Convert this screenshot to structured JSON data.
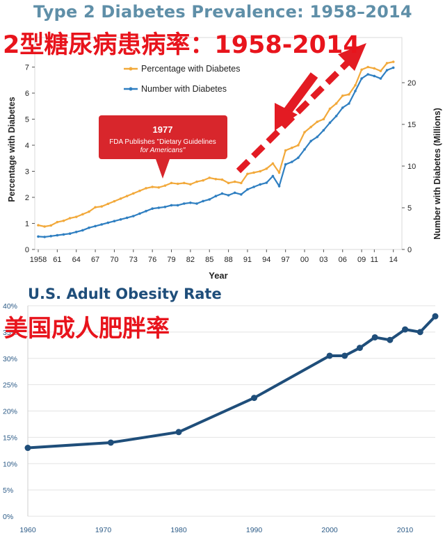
{
  "top": {
    "title": "Type 2 Diabetes Prevalence: 1958–2014",
    "title_cn": "2型糖尿病患病率：1958-2014",
    "annotation_year": "1977",
    "annotation_text_1": "FDA Publishes \"Dietary Guidelines",
    "annotation_text_2": "for Americans\"",
    "colors": {
      "percentage": "#f2a93b",
      "number": "#2f7fc1",
      "callout": "#d8262c",
      "arrow": "#e31b23"
    }
  },
  "bottom": {
    "title": "U.S. Adult Obesity Rate",
    "title_cn": "美国成人肥胖率",
    "colors": {
      "line": "#1f4e7a"
    }
  },
  "chart_data": [
    {
      "type": "line",
      "title": "Type 2 Diabetes Prevalence: 1958–2014",
      "xlabel": "Year",
      "ylabel": "Percentage with Diabetes",
      "y2label": "Number with Diabetes (Millions)",
      "x": [
        1958,
        1959,
        1960,
        1961,
        1962,
        1963,
        1964,
        1965,
        1966,
        1967,
        1968,
        1969,
        1970,
        1971,
        1972,
        1973,
        1974,
        1975,
        1976,
        1977,
        1978,
        1979,
        1980,
        1981,
        1982,
        1983,
        1984,
        1985,
        1986,
        1987,
        1988,
        1989,
        1990,
        1991,
        1992,
        1993,
        1994,
        1995,
        1996,
        1997,
        1998,
        1999,
        2000,
        2001,
        2002,
        2003,
        2004,
        2005,
        2006,
        2007,
        2008,
        2009,
        2010,
        2011,
        2012,
        2013,
        2014
      ],
      "x_tick_labels": [
        "1958",
        "61",
        "64",
        "67",
        "70",
        "73",
        "76",
        "79",
        "82",
        "85",
        "88",
        "91",
        "94",
        "97",
        "00",
        "03",
        "06",
        "09",
        "11",
        "14"
      ],
      "ylim": [
        0,
        7.2
      ],
      "y_ticks": [
        0,
        1,
        2,
        3,
        4,
        5,
        6,
        7
      ],
      "y2lim": [
        0,
        22.5
      ],
      "y2_ticks": [
        0,
        5,
        10,
        15,
        20
      ],
      "legend_position": "top-left",
      "series": [
        {
          "name": "Percentage with Diabetes",
          "axis": "left",
          "values": [
            0.93,
            0.88,
            0.92,
            1.05,
            1.1,
            1.2,
            1.25,
            1.35,
            1.45,
            1.62,
            1.65,
            1.75,
            1.85,
            1.95,
            2.05,
            2.15,
            2.25,
            2.35,
            2.4,
            2.38,
            2.45,
            2.55,
            2.52,
            2.55,
            2.5,
            2.6,
            2.65,
            2.75,
            2.7,
            2.68,
            2.55,
            2.6,
            2.55,
            2.9,
            2.95,
            3.0,
            3.1,
            3.3,
            2.95,
            3.8,
            3.9,
            4.0,
            4.5,
            4.7,
            4.9,
            5.0,
            5.4,
            5.6,
            5.9,
            5.95,
            6.3,
            6.9,
            7.0,
            6.95,
            6.85,
            7.15,
            7.2
          ]
        },
        {
          "name": "Number with Diabetes",
          "axis": "right",
          "values": [
            1.55,
            1.5,
            1.6,
            1.7,
            1.8,
            1.9,
            2.1,
            2.3,
            2.6,
            2.8,
            3.0,
            3.2,
            3.4,
            3.6,
            3.8,
            4.0,
            4.3,
            4.6,
            4.9,
            5.0,
            5.1,
            5.3,
            5.3,
            5.5,
            5.6,
            5.5,
            5.8,
            6.0,
            6.4,
            6.7,
            6.5,
            6.8,
            6.6,
            7.2,
            7.5,
            7.8,
            8.0,
            8.8,
            7.6,
            10.2,
            10.5,
            11.0,
            12.0,
            13.0,
            13.5,
            14.3,
            15.2,
            16.0,
            17.0,
            17.5,
            19.0,
            20.5,
            21.0,
            20.8,
            20.5,
            21.5,
            21.8
          ]
        }
      ]
    },
    {
      "type": "line",
      "title": "U.S. Adult Obesity Rate",
      "x": [
        1960,
        1971,
        1980,
        1990,
        2000,
        2002,
        2004,
        2006,
        2008,
        2010,
        2012,
        2014
      ],
      "x_tick_labels": [
        "1960",
        "1970",
        "1980",
        "1990",
        "2000",
        "2010"
      ],
      "ylim": [
        0,
        40
      ],
      "y_tick_labels": [
        "0%",
        "5%",
        "10%",
        "15%",
        "20%",
        "25%",
        "30%",
        "35%",
        "40%"
      ],
      "y_unit": "%",
      "grid": true,
      "series": [
        {
          "name": "",
          "values": [
            13.0,
            14.0,
            16.0,
            22.5,
            30.5,
            30.5,
            32.0,
            34.0,
            33.5,
            35.5,
            35.0,
            38.0
          ]
        }
      ]
    }
  ]
}
